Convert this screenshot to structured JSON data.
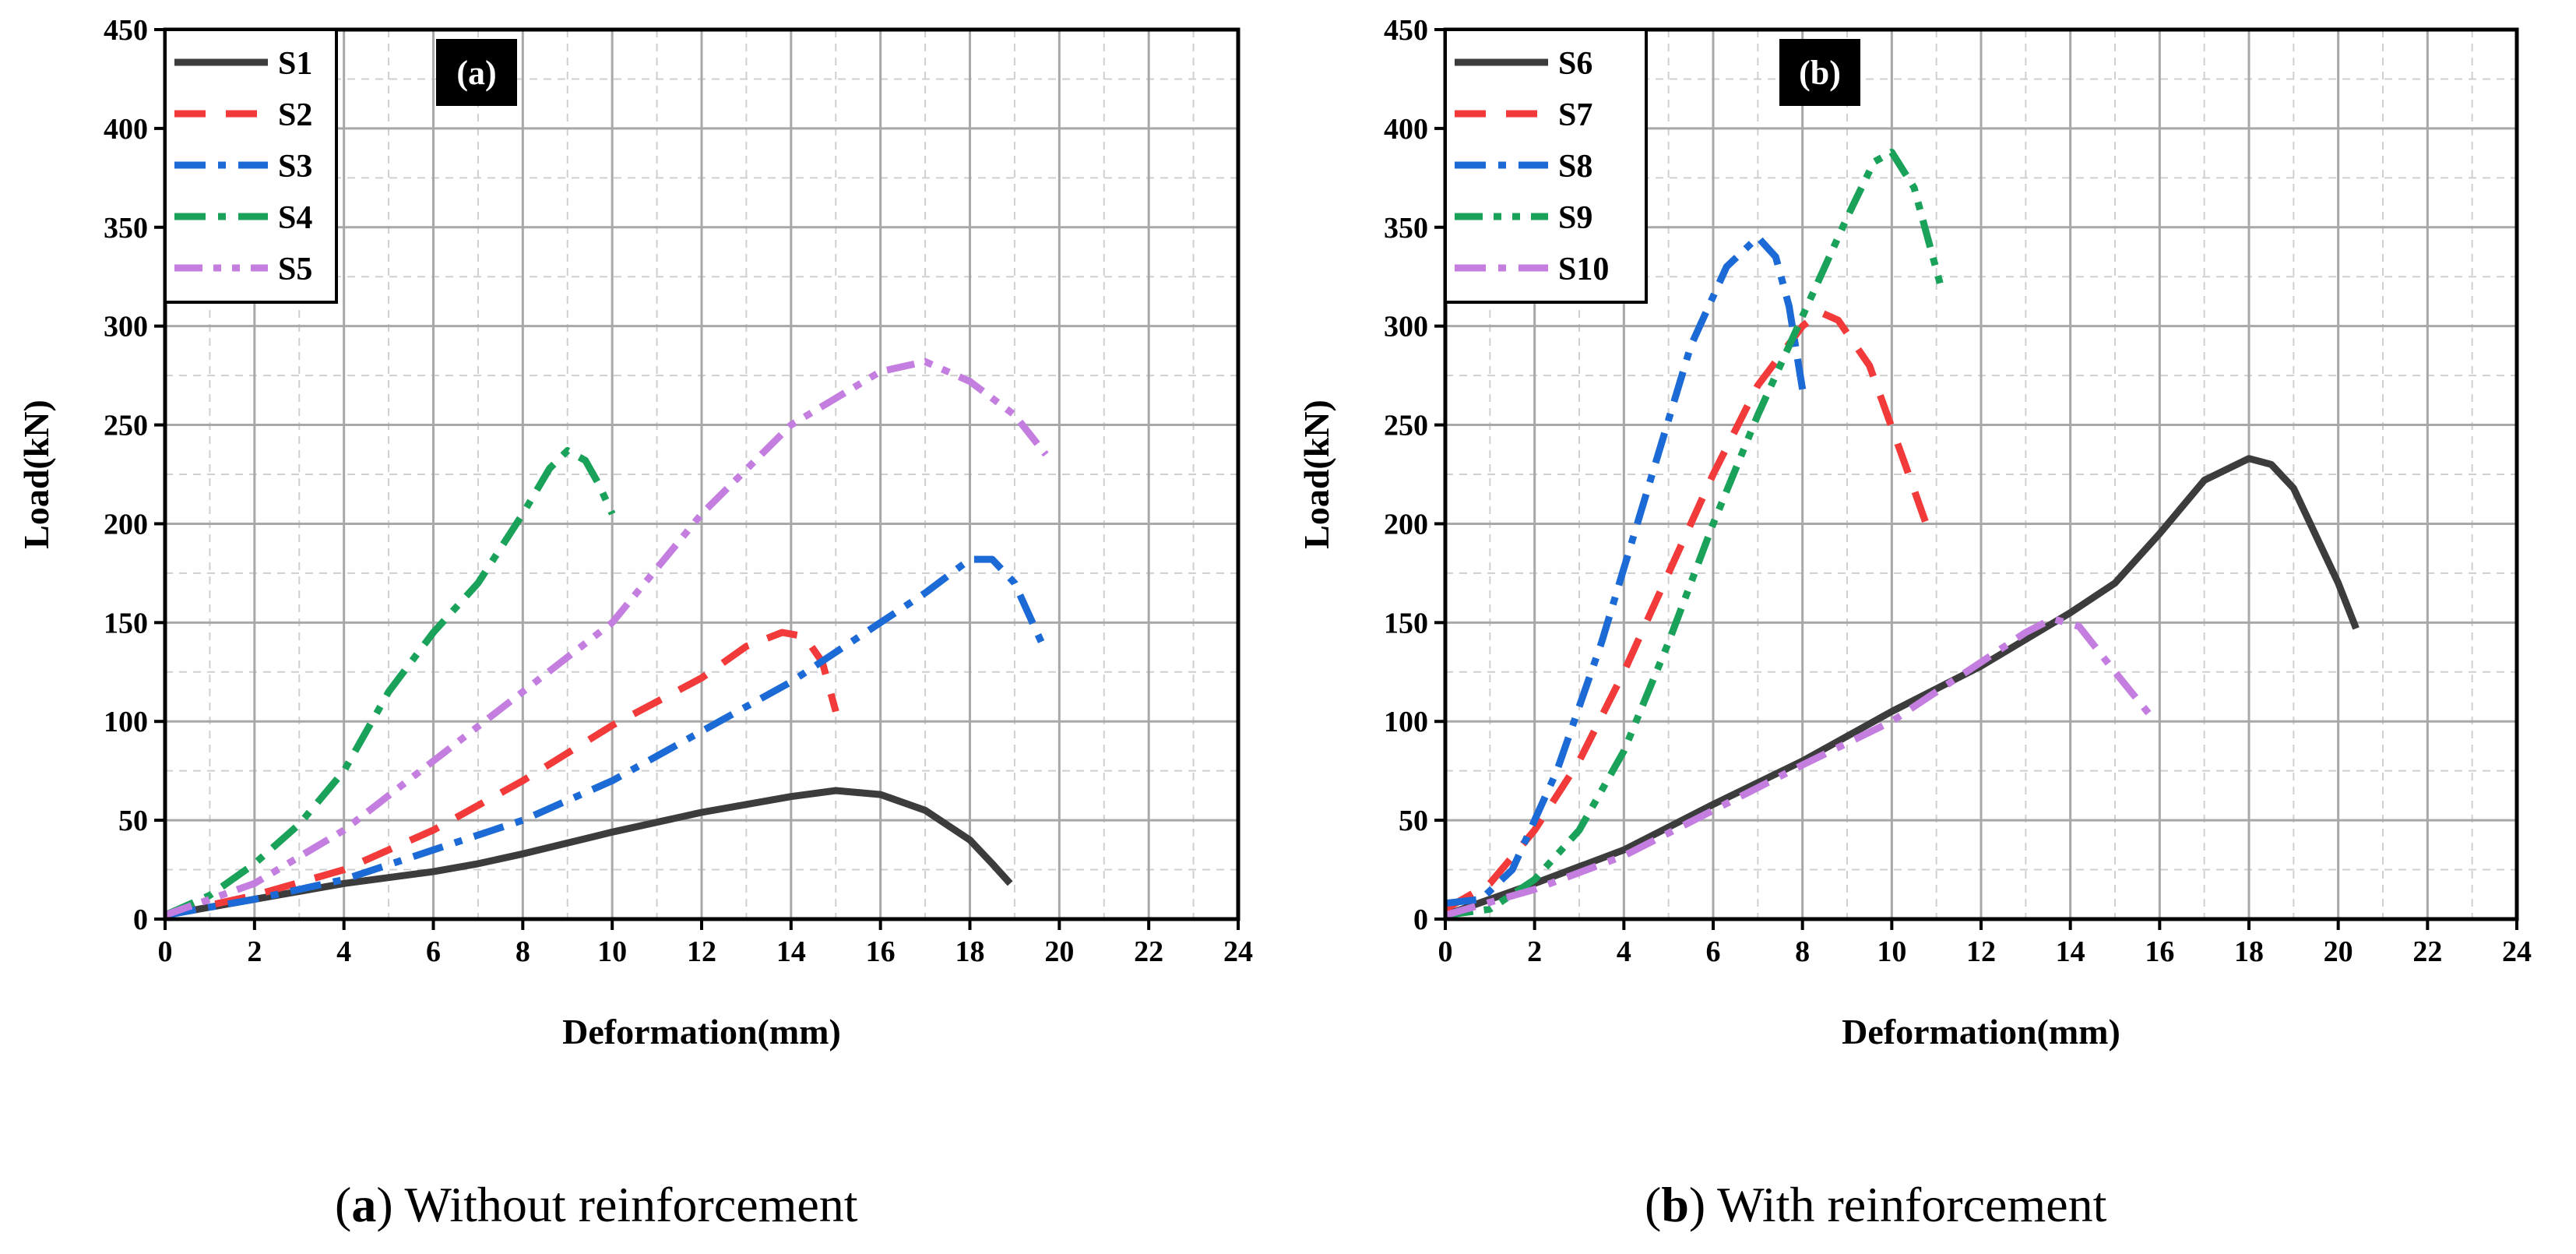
{
  "captions": [
    {
      "open": "(",
      "letter": "a",
      "close": ")",
      "text": " Without reinforcement"
    },
    {
      "open": "(",
      "letter": "b",
      "close": ")",
      "text": " With reinforcement"
    }
  ],
  "chart_data": [
    {
      "type": "line",
      "tag": "(a)",
      "xlabel": "Deformation(mm)",
      "ylabel": "Load(kN)",
      "xlim": [
        0,
        24
      ],
      "ylim": [
        0,
        450
      ],
      "xticks": [
        0,
        2,
        4,
        6,
        8,
        10,
        12,
        14,
        16,
        18,
        20,
        22,
        24
      ],
      "yticks": [
        0,
        50,
        100,
        150,
        200,
        250,
        300,
        350,
        400,
        450
      ],
      "grid": true,
      "legend_position": "top-left",
      "series": [
        {
          "name": "S1",
          "color": "#3c3c3c",
          "style": "solid",
          "x": [
            0,
            2,
            4,
            6,
            7,
            8,
            10,
            12,
            14,
            15,
            16,
            17,
            18,
            18.5,
            18.9
          ],
          "y": [
            2,
            10,
            18,
            24,
            28,
            33,
            44,
            54,
            62,
            65,
            63,
            55,
            40,
            28,
            18
          ]
        },
        {
          "name": "S2",
          "color": "#f23a3a",
          "style": "dash",
          "x": [
            0,
            2,
            4,
            6,
            8,
            10,
            12,
            13,
            13.8,
            14.3,
            14.7,
            15
          ],
          "y": [
            2,
            12,
            25,
            45,
            70,
            98,
            122,
            138,
            145,
            143,
            130,
            105
          ]
        },
        {
          "name": "S3",
          "color": "#1c6ad6",
          "style": "dashdot",
          "x": [
            0,
            2,
            4,
            6,
            8,
            10,
            12,
            14,
            16,
            17,
            18,
            18.5,
            19,
            19.6
          ],
          "y": [
            2,
            10,
            20,
            35,
            50,
            70,
            95,
            120,
            150,
            165,
            182,
            182,
            170,
            140
          ]
        },
        {
          "name": "S4",
          "color": "#1aa25a",
          "style": "dashdot",
          "x": [
            0,
            1,
            2,
            3,
            4,
            5,
            6,
            7,
            8,
            8.6,
            9,
            9.4,
            9.7,
            10
          ],
          "y": [
            2,
            12,
            28,
            48,
            75,
            115,
            145,
            170,
            205,
            228,
            237,
            232,
            220,
            205
          ]
        },
        {
          "name": "S5",
          "color": "#c47ee0",
          "style": "dashdotdot",
          "x": [
            0,
            2,
            4,
            6,
            8,
            10,
            12,
            14,
            16,
            17,
            18,
            19,
            19.7
          ],
          "y": [
            2,
            18,
            45,
            80,
            115,
            150,
            205,
            250,
            277,
            282,
            272,
            255,
            235
          ]
        }
      ]
    },
    {
      "type": "line",
      "tag": "(b)",
      "xlabel": "Deformation(mm)",
      "ylabel": "Load(kN)",
      "xlim": [
        0,
        24
      ],
      "ylim": [
        0,
        450
      ],
      "xticks": [
        0,
        2,
        4,
        6,
        8,
        10,
        12,
        14,
        16,
        18,
        20,
        22,
        24
      ],
      "yticks": [
        0,
        50,
        100,
        150,
        200,
        250,
        300,
        350,
        400,
        450
      ],
      "grid": true,
      "legend_position": "top-left",
      "series": [
        {
          "name": "S6",
          "color": "#3c3c3c",
          "style": "solid",
          "x": [
            0,
            2,
            4,
            6,
            8,
            10,
            12,
            14,
            15,
            16,
            17,
            18,
            18.5,
            19,
            20,
            20.4
          ],
          "y": [
            2,
            18,
            35,
            58,
            80,
            105,
            128,
            155,
            170,
            195,
            222,
            233,
            230,
            218,
            170,
            147
          ]
        },
        {
          "name": "S7",
          "color": "#f23a3a",
          "style": "dash",
          "x": [
            0,
            1,
            2,
            3,
            4,
            5,
            6,
            7,
            8,
            8.4,
            8.8,
            9.5,
            10.3,
            10.8
          ],
          "y": [
            5,
            18,
            45,
            80,
            125,
            175,
            225,
            270,
            300,
            307,
            303,
            280,
            230,
            198
          ]
        },
        {
          "name": "S8",
          "color": "#1c6ad6",
          "style": "dashdot",
          "x": [
            0,
            0.8,
            1.5,
            2.5,
            3.5,
            4.5,
            5.5,
            6.3,
            7,
            7.4,
            7.7,
            8
          ],
          "y": [
            8,
            10,
            25,
            75,
            140,
            215,
            290,
            330,
            345,
            335,
            310,
            268
          ]
        },
        {
          "name": "S9",
          "color": "#1aa25a",
          "style": "dashdotdot",
          "x": [
            0,
            1,
            2,
            3,
            4,
            5,
            6,
            7,
            8,
            9,
            9.6,
            10,
            10.5,
            11.1
          ],
          "y": [
            2,
            5,
            20,
            45,
            85,
            140,
            200,
            255,
            305,
            355,
            383,
            388,
            370,
            320
          ]
        },
        {
          "name": "S10",
          "color": "#c47ee0",
          "style": "dashdot",
          "x": [
            0,
            2,
            4,
            6,
            8,
            10,
            12,
            13,
            13.6,
            14.2,
            15,
            15.9
          ],
          "y": [
            2,
            15,
            32,
            55,
            78,
            100,
            130,
            145,
            152,
            148,
            125,
            100
          ]
        }
      ]
    }
  ]
}
